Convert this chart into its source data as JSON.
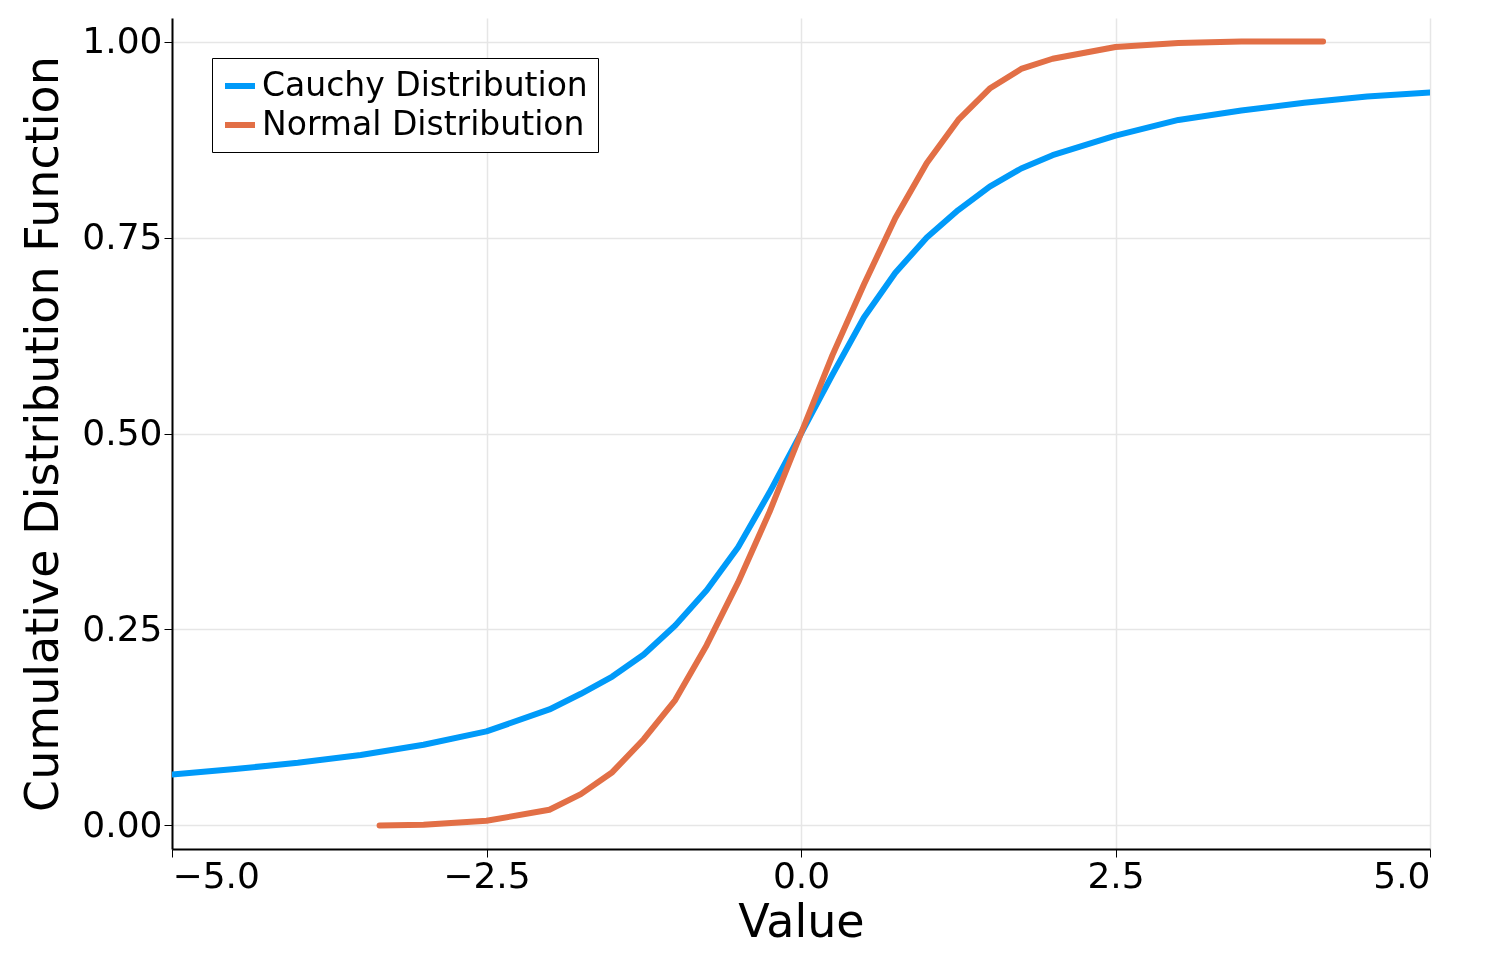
{
  "chart_data": {
    "type": "line",
    "xlabel": "Value",
    "ylabel": "Cumulative Distribution Function",
    "xlim": [
      -5,
      5
    ],
    "ylim": [
      -0.03,
      1.03
    ],
    "xticks": [
      {
        "value": -5,
        "label": "−5.0"
      },
      {
        "value": -2.5,
        "label": "−2.5"
      },
      {
        "value": 0,
        "label": "0.0"
      },
      {
        "value": 2.5,
        "label": "2.5"
      },
      {
        "value": 5,
        "label": "5.0"
      }
    ],
    "yticks": [
      {
        "value": 0,
        "label": "0.00"
      },
      {
        "value": 0.25,
        "label": "0.25"
      },
      {
        "value": 0.5,
        "label": "0.50"
      },
      {
        "value": 0.75,
        "label": "0.75"
      },
      {
        "value": 1,
        "label": "1.00"
      }
    ],
    "grid": true,
    "legend": "top left",
    "marker": "none",
    "line_style": "solid",
    "series": [
      {
        "name": "Cauchy Distribution",
        "color": "#009af9",
        "x": [
          -5,
          -4.5,
          -4,
          -3.5,
          -3,
          -2.5,
          -2,
          -1.75,
          -1.5,
          -1.25,
          -1,
          -0.75,
          -0.5,
          -0.25,
          0,
          0.25,
          0.5,
          0.75,
          1,
          1.25,
          1.5,
          1.75,
          2,
          2.5,
          3,
          3.5,
          4,
          4.5,
          5
        ],
        "values": [
          0.065,
          0.072,
          0.08,
          0.09,
          0.103,
          0.12,
          0.148,
          0.168,
          0.19,
          0.218,
          0.255,
          0.3,
          0.355,
          0.425,
          0.5,
          0.575,
          0.648,
          0.705,
          0.75,
          0.785,
          0.815,
          0.838,
          0.855,
          0.88,
          0.9,
          0.912,
          0.922,
          0.93,
          0.935
        ]
      },
      {
        "name": "Normal Distribution",
        "color": "#e26f46",
        "x": [
          -3.35,
          -3,
          -2.5,
          -2,
          -1.75,
          -1.5,
          -1.25,
          -1,
          -0.75,
          -0.5,
          -0.25,
          0,
          0.25,
          0.5,
          0.75,
          1,
          1.25,
          1.5,
          1.75,
          2,
          2.5,
          3,
          3.5,
          4.15
        ],
        "values": [
          0,
          0.001,
          0.006,
          0.02,
          0.04,
          0.068,
          0.11,
          0.16,
          0.23,
          0.31,
          0.4,
          0.5,
          0.6,
          0.69,
          0.775,
          0.845,
          0.9,
          0.94,
          0.965,
          0.978,
          0.993,
          0.998,
          1,
          1
        ]
      }
    ]
  }
}
